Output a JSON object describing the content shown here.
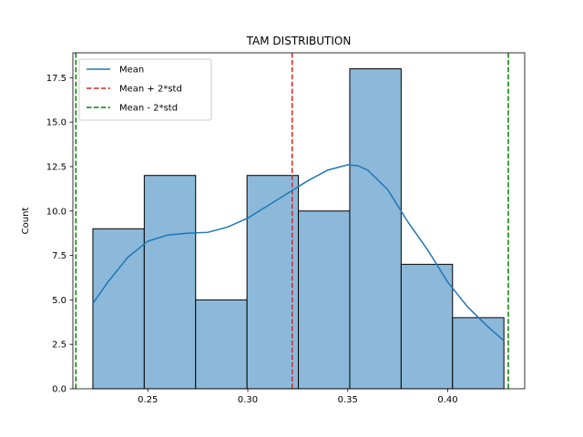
{
  "chart_data": {
    "type": "histogram",
    "title": "TAM DISTRIBUTION",
    "xlabel": "",
    "ylabel": "Count",
    "xlim": [
      0.2125,
      0.4385
    ],
    "ylim": [
      0,
      18.9
    ],
    "xticks": [
      0.25,
      0.3,
      0.35,
      0.4
    ],
    "xtick_labels": [
      "0.25",
      "0.30",
      "0.35",
      "0.40"
    ],
    "yticks": [
      0,
      2.5,
      5,
      7.5,
      10,
      12.5,
      15,
      17.5
    ],
    "ytick_labels": [
      "0.0",
      "2.5",
      "5.0",
      "7.5",
      "10.0",
      "12.5",
      "15.0",
      "17.5"
    ],
    "grid": false,
    "bins": [
      {
        "x0": 0.2225,
        "x1": 0.2482,
        "count": 9
      },
      {
        "x0": 0.2482,
        "x1": 0.2739,
        "count": 12
      },
      {
        "x0": 0.2739,
        "x1": 0.2996,
        "count": 5
      },
      {
        "x0": 0.2996,
        "x1": 0.3253,
        "count": 12
      },
      {
        "x0": 0.3253,
        "x1": 0.351,
        "count": 10
      },
      {
        "x0": 0.351,
        "x1": 0.3767,
        "count": 18
      },
      {
        "x0": 0.3767,
        "x1": 0.4024,
        "count": 7
      },
      {
        "x0": 0.4024,
        "x1": 0.4281,
        "count": 4
      }
    ],
    "kde": {
      "x": [
        0.2225,
        0.23,
        0.24,
        0.25,
        0.26,
        0.27,
        0.28,
        0.29,
        0.3,
        0.31,
        0.32,
        0.33,
        0.34,
        0.35,
        0.355,
        0.36,
        0.37,
        0.38,
        0.39,
        0.4,
        0.41,
        0.42,
        0.4281
      ],
      "y": [
        4.8,
        6.0,
        7.4,
        8.3,
        8.65,
        8.75,
        8.8,
        9.1,
        9.6,
        10.3,
        11.0,
        11.7,
        12.3,
        12.6,
        12.55,
        12.3,
        11.2,
        9.4,
        7.8,
        6.0,
        4.6,
        3.5,
        2.7
      ]
    },
    "vlines": [
      {
        "label": "Mean",
        "x": 0.3222,
        "color": "#d62728",
        "style": "dashed"
      },
      {
        "label": "Mean + 2*std",
        "x": 0.4303,
        "color": "#008000",
        "style": "dashed"
      },
      {
        "label": "Mean - 2*std",
        "x": 0.214,
        "color": "#008000",
        "style": "dashed"
      }
    ],
    "legend": {
      "placement": "top-left",
      "entries": [
        {
          "label": "Mean",
          "color": "#1f77b4",
          "style": "solid"
        },
        {
          "label": "Mean + 2*std",
          "color": "#d62728",
          "style": "dashed"
        },
        {
          "label": "Mean - 2*std",
          "color": "#008000",
          "style": "dashed"
        }
      ]
    },
    "colors": {
      "bar_fill": "#8cb9da",
      "bar_edge": "#000000",
      "kde_line": "#1f77b4"
    }
  }
}
